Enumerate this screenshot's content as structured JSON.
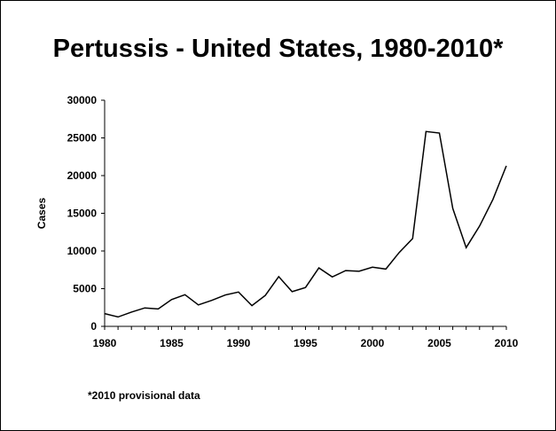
{
  "slide": {
    "title": "Pertussis - United States, 1980-2010*",
    "footnote": "*2010 provisional data"
  },
  "chart_data": {
    "type": "line",
    "title": "Pertussis - United States, 1980-2010*",
    "xlabel": "",
    "ylabel": "Cases",
    "xlim": [
      1980,
      2010
    ],
    "ylim": [
      0,
      30000
    ],
    "x_ticks": [
      1980,
      1985,
      1990,
      1995,
      2000,
      2005,
      2010
    ],
    "y_ticks": [
      0,
      5000,
      10000,
      15000,
      20000,
      25000,
      30000
    ],
    "grid": false,
    "series": [
      {
        "x": [
          1980,
          1981,
          1982,
          1983,
          1984,
          1985,
          1986,
          1987,
          1988,
          1989,
          1990,
          1991,
          1992,
          1993,
          1994,
          1995,
          1996,
          1997,
          1998,
          1999,
          2000,
          2001,
          2002,
          2003,
          2004,
          2005,
          2006,
          2007,
          2008,
          2009,
          2010
        ],
        "values": [
          1700,
          1250,
          1900,
          2450,
          2300,
          3550,
          4200,
          2850,
          3450,
          4150,
          4550,
          2750,
          4100,
          6600,
          4600,
          5150,
          7750,
          6550,
          7400,
          7300,
          7850,
          7600,
          9800,
          11650,
          25850,
          25650,
          15650,
          10450,
          13300,
          16850,
          21300
        ]
      }
    ]
  }
}
